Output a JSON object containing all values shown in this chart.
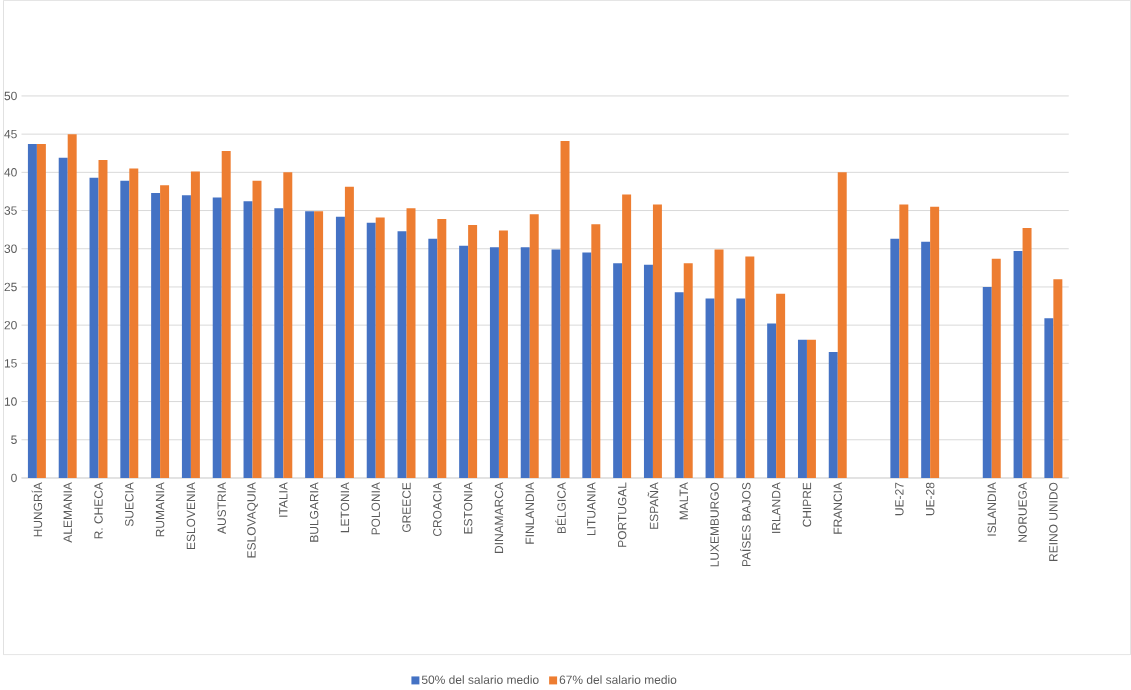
{
  "chart_data": {
    "type": "bar",
    "categories": [
      "HUNGRÍA",
      "ALEMANIA",
      "R. CHECA",
      "SUECIA",
      "RUMANIA",
      "ESLOVENIA",
      "AUSTRIA",
      "ESLOVAQUIA",
      "ITALIA",
      "BULGARIA",
      "LETONIA",
      "POLONIA",
      "GREECE",
      "CROACIA",
      "ESTONIA",
      "DINAMARCA",
      "FINLANDIA",
      "BÉLGICA",
      "LITUANIA",
      "PORTUGAL",
      "ESPAÑA",
      "MALTA",
      "LUXEMBURGO",
      "PAÍSES BAJOS",
      "IRLANDA",
      "CHIPRE",
      "FRANCIA",
      null,
      "UE-27",
      "UE-28",
      null,
      "ISLANDIA",
      "NORUEGA",
      "REINO UNIDO"
    ],
    "series": [
      {
        "name": "50% del salario medio",
        "color": "#4472c4",
        "values": [
          43.7,
          41.9,
          39.3,
          38.9,
          37.3,
          37.0,
          36.7,
          36.2,
          35.3,
          34.9,
          34.2,
          33.4,
          32.3,
          31.3,
          30.4,
          30.2,
          30.2,
          29.9,
          29.5,
          28.1,
          27.9,
          24.3,
          23.5,
          23.5,
          20.2,
          18.1,
          16.5,
          null,
          31.3,
          30.9,
          null,
          25.0,
          29.7,
          20.9
        ]
      },
      {
        "name": "67% del salario medio",
        "color": "#ed7d31",
        "values": [
          43.7,
          45.0,
          41.6,
          40.5,
          38.3,
          40.1,
          42.8,
          38.9,
          40.0,
          34.9,
          38.1,
          34.1,
          35.3,
          33.9,
          33.1,
          32.4,
          34.5,
          44.1,
          33.2,
          37.1,
          35.8,
          28.1,
          29.9,
          29.0,
          24.1,
          18.1,
          40.0,
          null,
          35.8,
          35.5,
          null,
          28.7,
          32.7,
          26.0
        ]
      }
    ],
    "ylim": [
      0,
      50
    ],
    "yticks": [
      0,
      5,
      10,
      15,
      20,
      25,
      30,
      35,
      40,
      45,
      50
    ],
    "grid": "y",
    "legend": "bottom"
  }
}
